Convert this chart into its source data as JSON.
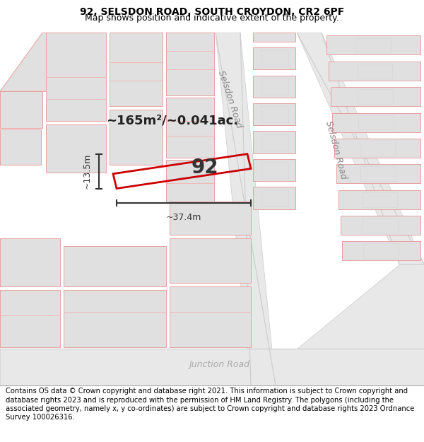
{
  "title_line1": "92, SELSDON ROAD, SOUTH CROYDON, CR2 6PF",
  "title_line2": "Map shows position and indicative extent of the property.",
  "footer_text": "Contains OS data © Crown copyright and database right 2021. This information is subject to Crown copyright and database rights 2023 and is reproduced with the permission of HM Land Registry. The polygons (including the associated geometry, namely x, y co-ordinates) are subject to Crown copyright and database rights 2023 Ordnance Survey 100026316.",
  "map_bg_color": "#ffffff",
  "road_color_fill": "#e8e8e8",
  "road_color_line": "#cccccc",
  "highlight_rect_color": "#cc0000",
  "building_fill": "#e0e0e0",
  "building_stroke": "#e8a0a0",
  "building_stroke_thin": "#f0b8b8",
  "area_text": "~165m²/~0.041ac.",
  "width_text": "~37.4m",
  "height_text": "~13.5m",
  "property_number": "92",
  "road_label_selsdon_upper": "Selsdon Road",
  "road_label_selsdon_lower": "Selsdon Road",
  "road_label_junction": "Junction Road",
  "title_fontsize": 10,
  "subtitle_fontsize": 9,
  "footer_fontsize": 7.2
}
